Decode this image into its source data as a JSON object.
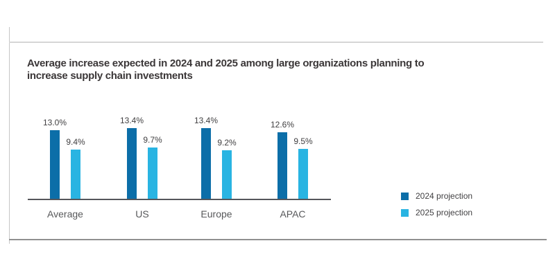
{
  "page": {
    "background_color": "#ffffff",
    "frame_line_color": "#c6c6c6",
    "axis_line_color": "#55565a"
  },
  "chart_data": {
    "type": "bar",
    "title": "Average increase expected in 2024 and 2025 among large organizations planning to increase supply chain investments",
    "xlabel": "",
    "ylabel": "",
    "categories": [
      "Average",
      "US",
      "Europe",
      "APAC"
    ],
    "series": [
      {
        "name": "2024 projection",
        "color": "#0c6ea8",
        "values": [
          13.0,
          13.4,
          13.4,
          12.6
        ],
        "labels": [
          "13.0%",
          "13.4%",
          "13.4%",
          "12.6%"
        ]
      },
      {
        "name": "2025 projection",
        "color": "#29b4e2",
        "values": [
          9.4,
          9.7,
          9.2,
          9.5
        ],
        "labels": [
          "9.4%",
          "9.7%",
          "9.2%",
          "9.5%"
        ]
      }
    ],
    "ylim": [
      0,
      16
    ],
    "grid": false,
    "y_axis_visible": false,
    "value_labels_shown": true,
    "legend_position": "right"
  }
}
